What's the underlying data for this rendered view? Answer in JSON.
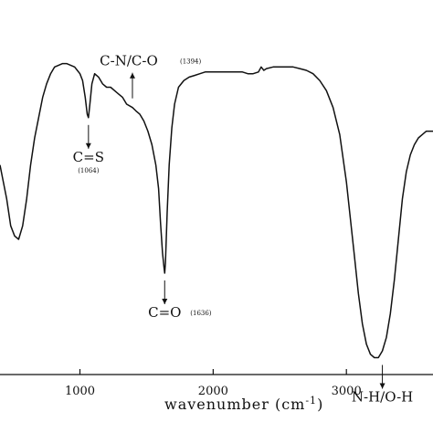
{
  "chart_data": {
    "type": "line",
    "xlabel": "wavenumber (cm",
    "xlabel_sup": "-1",
    "xlabel_close": ")",
    "xlim": [
      400,
      3650
    ],
    "xticks": [
      1000,
      2000,
      3000
    ],
    "tick_labels": [
      "1000",
      "2000",
      "3000"
    ],
    "ylim": [
      0,
      100
    ],
    "grid": false,
    "series": [
      {
        "x": [
          400,
          420,
          450,
          480,
          510,
          540,
          570,
          600,
          630,
          660,
          690,
          720,
          750,
          780,
          810,
          840,
          870,
          900,
          930,
          960,
          980,
          1000,
          1020,
          1040,
          1055,
          1064,
          1075,
          1090,
          1110,
          1140,
          1170,
          1200,
          1230,
          1260,
          1290,
          1320,
          1350,
          1394,
          1420,
          1450,
          1480,
          1510,
          1540,
          1570,
          1590,
          1605,
          1620,
          1630,
          1636,
          1642,
          1655,
          1670,
          1690,
          1710,
          1740,
          1780,
          1820,
          1860,
          1900,
          1940,
          1980,
          2020,
          2060,
          2100,
          2140,
          2180,
          2220,
          2260,
          2300,
          2340,
          2360,
          2370,
          2380,
          2400,
          2450,
          2500,
          2550,
          2600,
          2650,
          2700,
          2750,
          2800,
          2850,
          2900,
          2950,
          3000,
          3030,
          3060,
          3090,
          3120,
          3150,
          3180,
          3210,
          3240,
          3270,
          3300,
          3330,
          3360,
          3390,
          3420,
          3450,
          3480,
          3510,
          3540,
          3570,
          3600,
          3650
        ],
        "y": [
          62,
          58,
          52,
          44,
          41,
          40,
          44,
          52,
          62,
          70,
          76,
          82,
          86,
          89,
          91,
          91.5,
          92,
          92,
          91.5,
          91,
          90,
          89,
          87,
          82,
          77,
          76,
          80,
          86,
          89,
          88,
          86,
          85,
          85,
          84,
          83,
          82,
          80,
          79,
          78,
          77,
          75,
          72,
          68,
          62,
          55,
          45,
          36,
          32,
          30,
          33,
          48,
          62,
          73,
          80,
          85,
          87,
          88,
          88.5,
          89,
          89.5,
          89.5,
          89.5,
          89.5,
          89.5,
          89.5,
          89.5,
          89.5,
          89,
          89,
          89.5,
          91,
          90.5,
          90,
          90.5,
          91,
          91,
          91,
          91,
          90.5,
          90,
          89,
          87,
          84,
          79,
          71,
          57,
          46,
          35,
          24,
          15,
          9,
          6,
          5,
          5,
          7,
          11,
          18,
          28,
          40,
          52,
          60,
          65,
          68,
          70,
          71,
          72,
          72
        ]
      }
    ],
    "annotations": [
      {
        "main": "C=S",
        "sub": "(1064)",
        "x": 1064,
        "y": 76,
        "dir": "down"
      },
      {
        "main": "C-N/C-O",
        "sub": "(1394)",
        "x": 1394,
        "y": 79,
        "dir": "up"
      },
      {
        "main": "C=O",
        "sub": "(1636)",
        "x": 1636,
        "y": 30,
        "dir": "down"
      },
      {
        "main": "N-H/O-H",
        "sub": "",
        "x": 3270,
        "y": 5,
        "dir": "down"
      }
    ]
  }
}
